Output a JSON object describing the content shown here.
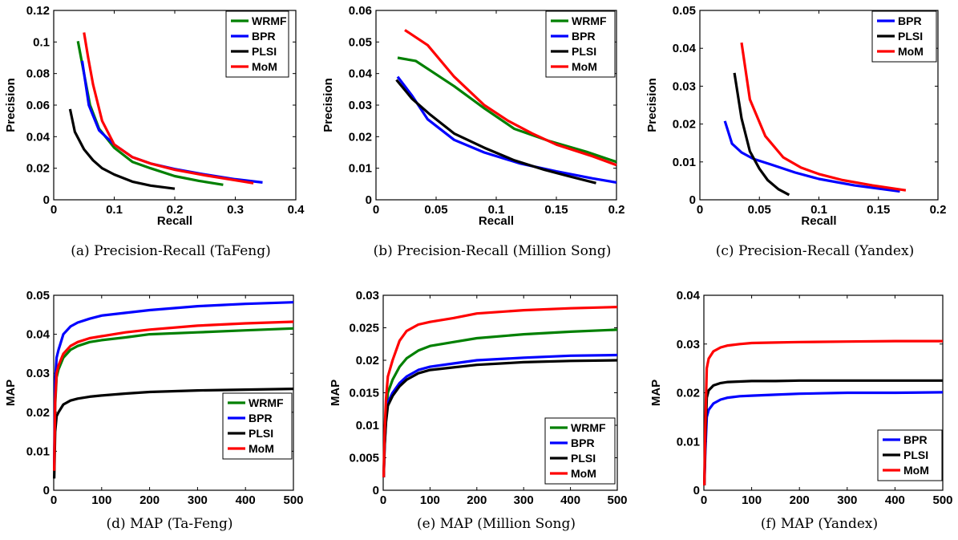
{
  "chart_data": [
    {
      "type": "line",
      "caption": "(a) Precision-Recall (TaFeng)",
      "xlabel": "Recall",
      "ylabel": "Precision",
      "xlim": [
        0,
        0.4
      ],
      "ylim": [
        0,
        0.12
      ],
      "xticks": [
        0,
        0.1,
        0.2,
        0.3,
        0.4
      ],
      "xtick_labels": [
        "0",
        "0.1",
        "0.2",
        "0.3",
        "0.4"
      ],
      "yticks": [
        0,
        0.02,
        0.04,
        0.06,
        0.08,
        0.1,
        0.12
      ],
      "ytick_labels": [
        "0",
        "0.02",
        "0.04",
        "0.06",
        "0.08",
        "0.1",
        "0.12"
      ],
      "legend_position": "top-right",
      "series": [
        {
          "name": "WRMF",
          "color": "#008000",
          "x": [
            0.04,
            0.05,
            0.06,
            0.075,
            0.1,
            0.13,
            0.16,
            0.2,
            0.24,
            0.28
          ],
          "y": [
            0.1005,
            0.08,
            0.06,
            0.045,
            0.033,
            0.024,
            0.02,
            0.015,
            0.012,
            0.0095
          ]
        },
        {
          "name": "BPR",
          "color": "#0000ff",
          "x": [
            0.047,
            0.058,
            0.075,
            0.1,
            0.13,
            0.16,
            0.2,
            0.25,
            0.3,
            0.345
          ],
          "y": [
            0.088,
            0.06,
            0.044,
            0.035,
            0.027,
            0.023,
            0.0195,
            0.016,
            0.013,
            0.011
          ]
        },
        {
          "name": "PLSI",
          "color": "#000000",
          "x": [
            0.027,
            0.035,
            0.05,
            0.065,
            0.08,
            0.1,
            0.13,
            0.16,
            0.2
          ],
          "y": [
            0.0575,
            0.043,
            0.032,
            0.025,
            0.02,
            0.016,
            0.0115,
            0.009,
            0.007
          ]
        },
        {
          "name": "MoM",
          "color": "#ff0000",
          "x": [
            0.05,
            0.057,
            0.065,
            0.08,
            0.1,
            0.13,
            0.16,
            0.2,
            0.25,
            0.33
          ],
          "y": [
            0.106,
            0.09,
            0.073,
            0.05,
            0.035,
            0.027,
            0.023,
            0.019,
            0.0155,
            0.0105
          ]
        }
      ]
    },
    {
      "type": "line",
      "caption": "(b) Precision-Recall (Million Song)",
      "xlabel": "Recall",
      "ylabel": "Precision",
      "xlim": [
        0,
        0.2
      ],
      "ylim": [
        0,
        0.06
      ],
      "xticks": [
        0,
        0.05,
        0.1,
        0.15,
        0.2
      ],
      "xtick_labels": [
        "0",
        "0.05",
        "0.1",
        "0.15",
        "0.2"
      ],
      "yticks": [
        0,
        0.01,
        0.02,
        0.03,
        0.04,
        0.05,
        0.06
      ],
      "ytick_labels": [
        "0",
        "0.01",
        "0.02",
        "0.03",
        "0.04",
        "0.05",
        "0.06"
      ],
      "legend_position": "top-right",
      "series": [
        {
          "name": "WRMF",
          "color": "#008000",
          "x": [
            0.018,
            0.033,
            0.045,
            0.065,
            0.09,
            0.115,
            0.145,
            0.175,
            0.2
          ],
          "y": [
            0.045,
            0.044,
            0.041,
            0.036,
            0.029,
            0.0225,
            0.0185,
            0.0152,
            0.012
          ]
        },
        {
          "name": "BPR",
          "color": "#0000ff",
          "x": [
            0.018,
            0.03,
            0.043,
            0.065,
            0.09,
            0.12,
            0.15,
            0.18,
            0.2
          ],
          "y": [
            0.039,
            0.033,
            0.0255,
            0.019,
            0.015,
            0.0115,
            0.009,
            0.0068,
            0.0055
          ]
        },
        {
          "name": "PLSI",
          "color": "#000000",
          "x": [
            0.017,
            0.03,
            0.045,
            0.065,
            0.09,
            0.115,
            0.14,
            0.16,
            0.183
          ],
          "y": [
            0.038,
            0.032,
            0.027,
            0.021,
            0.0165,
            0.0125,
            0.0095,
            0.0075,
            0.0053
          ]
        },
        {
          "name": "MoM",
          "color": "#ff0000",
          "x": [
            0.024,
            0.043,
            0.065,
            0.09,
            0.11,
            0.13,
            0.15,
            0.18,
            0.2
          ],
          "y": [
            0.0538,
            0.049,
            0.039,
            0.03,
            0.025,
            0.021,
            0.0175,
            0.0138,
            0.011
          ]
        }
      ]
    },
    {
      "type": "line",
      "caption": "(c) Precision-Recall (Yandex)",
      "xlabel": "Recall",
      "ylabel": "Precision",
      "xlim": [
        0,
        0.2
      ],
      "ylim": [
        0,
        0.05
      ],
      "xticks": [
        0,
        0.05,
        0.1,
        0.15,
        0.2
      ],
      "xtick_labels": [
        "0",
        "0.05",
        "0.1",
        "0.15",
        "0.2"
      ],
      "yticks": [
        0,
        0.01,
        0.02,
        0.03,
        0.04,
        0.05
      ],
      "ytick_labels": [
        "0",
        "0.01",
        "0.02",
        "0.03",
        "0.04",
        "0.05"
      ],
      "legend_position": "top-right",
      "series": [
        {
          "name": "BPR",
          "color": "#0000ff",
          "x": [
            0.021,
            0.027,
            0.035,
            0.045,
            0.06,
            0.08,
            0.1,
            0.13,
            0.168
          ],
          "y": [
            0.0208,
            0.0148,
            0.0125,
            0.0108,
            0.0093,
            0.0072,
            0.0055,
            0.0038,
            0.0022
          ]
        },
        {
          "name": "PLSI",
          "color": "#000000",
          "x": [
            0.029,
            0.035,
            0.042,
            0.05,
            0.057,
            0.066,
            0.075
          ],
          "y": [
            0.0335,
            0.0215,
            0.0128,
            0.0082,
            0.0052,
            0.0028,
            0.0013
          ]
        },
        {
          "name": "MoM",
          "color": "#ff0000",
          "x": [
            0.035,
            0.042,
            0.055,
            0.07,
            0.085,
            0.1,
            0.12,
            0.145,
            0.173
          ],
          "y": [
            0.0415,
            0.0265,
            0.0168,
            0.0112,
            0.0085,
            0.0068,
            0.0052,
            0.0038,
            0.0025
          ]
        }
      ]
    },
    {
      "type": "line",
      "caption": "(d) MAP (Ta-Feng)",
      "xlabel": "",
      "ylabel": "MAP",
      "xlim": [
        0,
        500
      ],
      "ylim": [
        0,
        0.05
      ],
      "xticks": [
        0,
        100,
        200,
        300,
        400,
        500
      ],
      "xtick_labels": [
        "0",
        "100",
        "200",
        "300",
        "400",
        "500"
      ],
      "yticks": [
        0,
        0.01,
        0.02,
        0.03,
        0.04,
        0.05
      ],
      "ytick_labels": [
        "0",
        "0.01",
        "0.02",
        "0.03",
        "0.04",
        "0.05"
      ],
      "legend_position": "bottom-right",
      "series": [
        {
          "name": "WRMF",
          "color": "#008000",
          "x": [
            1,
            3,
            6,
            10,
            20,
            35,
            50,
            75,
            100,
            150,
            200,
            300,
            400,
            500
          ],
          "y": [
            0.005,
            0.022,
            0.029,
            0.031,
            0.034,
            0.036,
            0.037,
            0.038,
            0.0385,
            0.0392,
            0.04,
            0.0405,
            0.041,
            0.0415
          ]
        },
        {
          "name": "BPR",
          "color": "#0000ff",
          "x": [
            1,
            3,
            6,
            10,
            20,
            35,
            50,
            75,
            100,
            150,
            200,
            300,
            400,
            500
          ],
          "y": [
            0.006,
            0.028,
            0.034,
            0.036,
            0.04,
            0.042,
            0.043,
            0.044,
            0.0448,
            0.0455,
            0.0462,
            0.0472,
            0.0478,
            0.0482
          ]
        },
        {
          "name": "PLSI",
          "color": "#000000",
          "x": [
            1,
            3,
            6,
            10,
            20,
            35,
            50,
            75,
            100,
            150,
            200,
            300,
            400,
            500
          ],
          "y": [
            0.003,
            0.015,
            0.019,
            0.02,
            0.022,
            0.023,
            0.0235,
            0.024,
            0.0243,
            0.0248,
            0.0252,
            0.0256,
            0.0258,
            0.026
          ]
        },
        {
          "name": "MoM",
          "color": "#ff0000",
          "x": [
            1,
            3,
            6,
            10,
            20,
            35,
            50,
            75,
            100,
            150,
            200,
            300,
            400,
            500
          ],
          "y": [
            0.005,
            0.023,
            0.03,
            0.032,
            0.035,
            0.037,
            0.038,
            0.039,
            0.0395,
            0.0405,
            0.0412,
            0.0422,
            0.0428,
            0.0432
          ]
        }
      ]
    },
    {
      "type": "line",
      "caption": "(e) MAP (Million Song)",
      "xlabel": "",
      "ylabel": "MAP",
      "xlim": [
        0,
        500
      ],
      "ylim": [
        0,
        0.03
      ],
      "xticks": [
        0,
        100,
        200,
        300,
        400,
        500
      ],
      "xtick_labels": [
        "0",
        "100",
        "200",
        "300",
        "400",
        "500"
      ],
      "yticks": [
        0,
        0.005,
        0.01,
        0.015,
        0.02,
        0.025,
        0.03
      ],
      "ytick_labels": [
        "0",
        "0.005",
        "0.01",
        "0.015",
        "0.02",
        "0.025",
        "0.03"
      ],
      "legend_position": "bottom-right",
      "series": [
        {
          "name": "WRMF",
          "color": "#008000",
          "x": [
            1,
            3,
            6,
            10,
            20,
            35,
            50,
            75,
            100,
            150,
            200,
            300,
            400,
            500
          ],
          "y": [
            0.002,
            0.008,
            0.012,
            0.015,
            0.017,
            0.019,
            0.0203,
            0.0215,
            0.0222,
            0.0228,
            0.0234,
            0.024,
            0.0244,
            0.0247
          ]
        },
        {
          "name": "BPR",
          "color": "#0000ff",
          "x": [
            1,
            3,
            6,
            10,
            20,
            35,
            50,
            75,
            100,
            150,
            200,
            300,
            400,
            500
          ],
          "y": [
            0.002,
            0.007,
            0.011,
            0.0135,
            0.015,
            0.0165,
            0.0175,
            0.0185,
            0.019,
            0.0195,
            0.02,
            0.0204,
            0.0207,
            0.0208
          ]
        },
        {
          "name": "PLSI",
          "color": "#000000",
          "x": [
            1,
            3,
            6,
            10,
            20,
            35,
            50,
            75,
            100,
            150,
            200,
            300,
            400,
            500
          ],
          "y": [
            0.002,
            0.0068,
            0.0105,
            0.013,
            0.0145,
            0.016,
            0.017,
            0.018,
            0.0185,
            0.0189,
            0.0193,
            0.0197,
            0.0199,
            0.02
          ]
        },
        {
          "name": "MoM",
          "color": "#ff0000",
          "x": [
            1,
            3,
            6,
            10,
            20,
            35,
            50,
            75,
            100,
            150,
            200,
            300,
            400,
            500
          ],
          "y": [
            0.002,
            0.009,
            0.014,
            0.0175,
            0.02,
            0.023,
            0.0245,
            0.0255,
            0.0259,
            0.0265,
            0.0272,
            0.0277,
            0.028,
            0.0282
          ]
        }
      ]
    },
    {
      "type": "line",
      "caption": "(f) MAP (Yandex)",
      "xlabel": "",
      "ylabel": "MAP",
      "xlim": [
        0,
        500
      ],
      "ylim": [
        0,
        0.04
      ],
      "xticks": [
        0,
        100,
        200,
        300,
        400,
        500
      ],
      "xtick_labels": [
        "0",
        "100",
        "200",
        "300",
        "400",
        "500"
      ],
      "yticks": [
        0,
        0.01,
        0.02,
        0.03,
        0.04
      ],
      "ytick_labels": [
        "0",
        "0.01",
        "0.02",
        "0.03",
        "0.04"
      ],
      "legend_position": "bottom-right",
      "series": [
        {
          "name": "BPR",
          "color": "#0000ff",
          "x": [
            1,
            3,
            6,
            10,
            20,
            35,
            50,
            75,
            100,
            150,
            200,
            300,
            400,
            500
          ],
          "y": [
            0.001,
            0.008,
            0.015,
            0.0165,
            0.0178,
            0.0186,
            0.019,
            0.0193,
            0.0194,
            0.0196,
            0.0198,
            0.02,
            0.02,
            0.0201
          ]
        },
        {
          "name": "PLSI",
          "color": "#000000",
          "x": [
            1,
            3,
            6,
            10,
            20,
            35,
            50,
            75,
            100,
            150,
            200,
            300,
            400,
            500
          ],
          "y": [
            0.001,
            0.01,
            0.019,
            0.0205,
            0.0215,
            0.022,
            0.0222,
            0.0223,
            0.0224,
            0.0224,
            0.0225,
            0.0225,
            0.0225,
            0.0225
          ]
        },
        {
          "name": "MoM",
          "color": "#ff0000",
          "x": [
            1,
            3,
            6,
            10,
            20,
            35,
            50,
            75,
            100,
            150,
            200,
            300,
            400,
            500
          ],
          "y": [
            0.001,
            0.013,
            0.025,
            0.027,
            0.0285,
            0.0293,
            0.0297,
            0.03,
            0.0302,
            0.0303,
            0.0304,
            0.0305,
            0.0306,
            0.0306
          ]
        }
      ]
    }
  ]
}
